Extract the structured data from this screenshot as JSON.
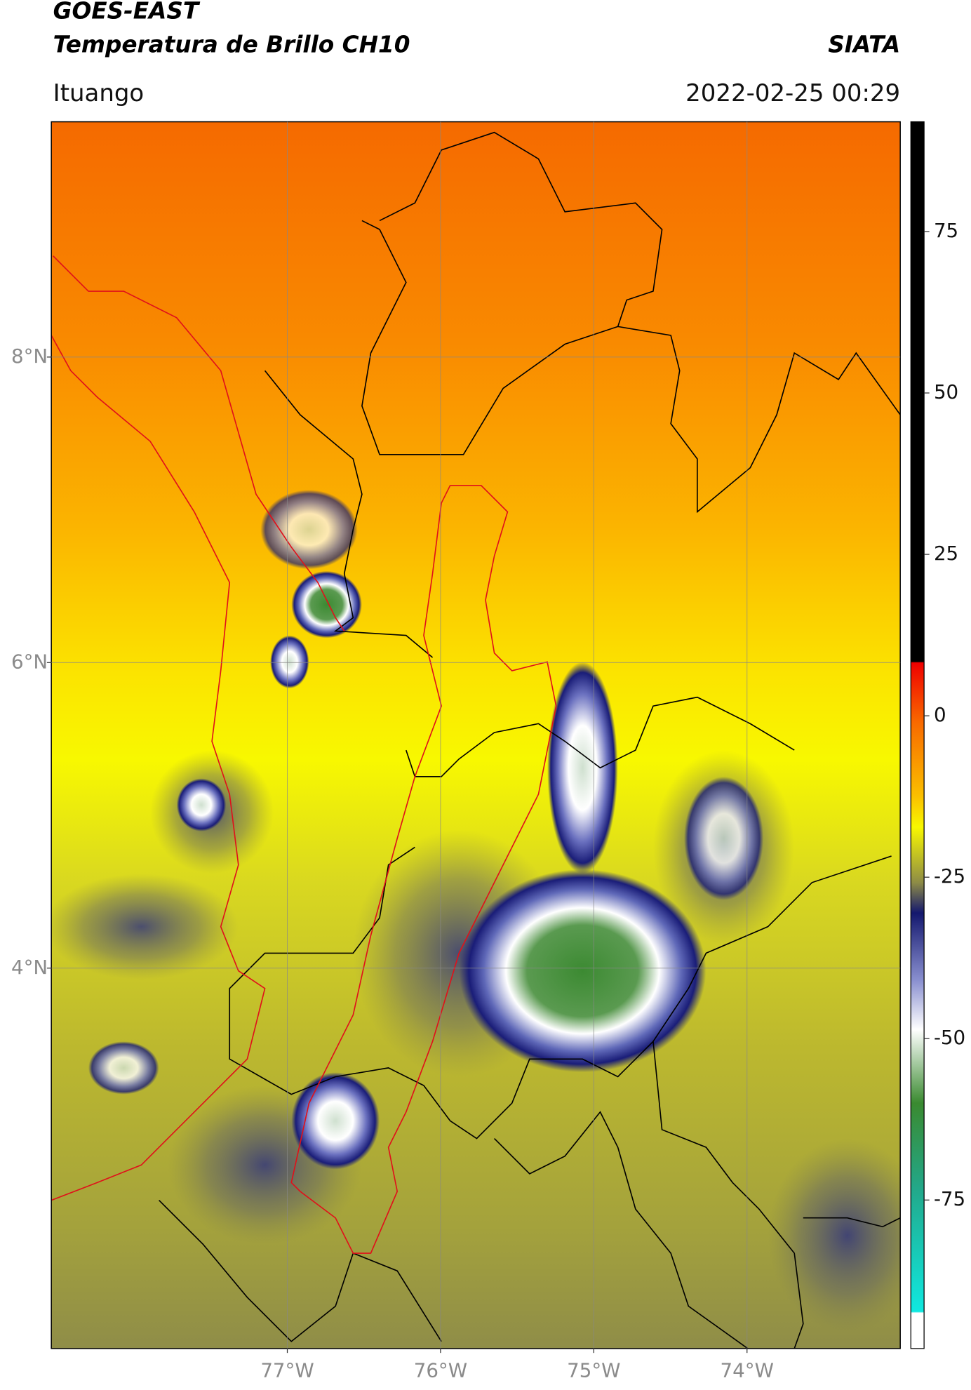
{
  "header": {
    "title": "GOES-EAST",
    "subtitle": "Temperatura de Brillo CH10",
    "source": "SIATA",
    "location": "Ituango",
    "timestamp": "2022-02-25 00:29"
  },
  "map": {
    "xlim": [
      -78.54,
      -73.0
    ],
    "ylim": [
      1.51,
      9.54
    ],
    "xticks": [
      {
        "value": -77,
        "label": "77°W"
      },
      {
        "value": -76,
        "label": "76°W"
      },
      {
        "value": -75,
        "label": "75°W"
      },
      {
        "value": -74,
        "label": "74°W"
      }
    ],
    "yticks": [
      {
        "value": 8,
        "label": "8°N"
      },
      {
        "value": 6,
        "label": "6°N"
      },
      {
        "value": 4,
        "label": "4°N"
      }
    ],
    "grid": true
  },
  "colorbar": {
    "lim": [
      -98,
      92
    ],
    "ticks": [
      75,
      50,
      25,
      0,
      -25,
      -50,
      -75
    ]
  }
}
